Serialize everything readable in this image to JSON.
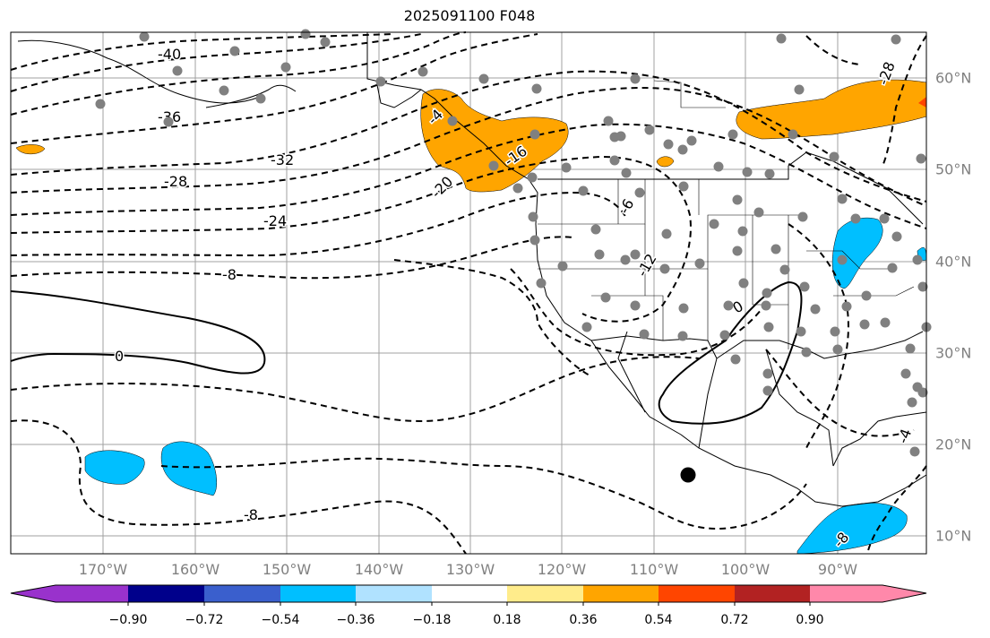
{
  "title": "2025091100 F048",
  "longitude_labels": [
    "170°W",
    "160°W",
    "150°W",
    "140°W",
    "130°W",
    "120°W",
    "110°W",
    "100°W",
    "90°W"
  ],
  "latitude_labels": [
    "60°N",
    "50°N",
    "40°N",
    "30°N",
    "20°N",
    "10°N"
  ],
  "contour_labels": [
    "-40",
    "-36",
    "-32",
    "-28",
    "-24",
    "-20",
    "-16",
    "-12",
    "-8",
    "-6",
    "-4",
    "0",
    "0",
    "-8",
    "-28",
    "-4",
    "-8"
  ],
  "colorbar": {
    "ticks": [
      "−0.90",
      "−0.72",
      "−0.54",
      "−0.36",
      "−0.18",
      "0.18",
      "0.36",
      "0.54",
      "0.72",
      "0.90"
    ],
    "colors": [
      "#9932cc",
      "#00008b",
      "#3a5fcd",
      "#00bfff",
      "#b0e2ff",
      "#ffffff",
      "#ffec8b",
      "#ffa500",
      "#ff4500",
      "#b22222",
      "#ff88aa"
    ]
  },
  "marker": "storm-center",
  "shading_colors": {
    "positive": "#ffa500",
    "negative": "#00bfff",
    "strong_positive": "#ff4500"
  }
}
